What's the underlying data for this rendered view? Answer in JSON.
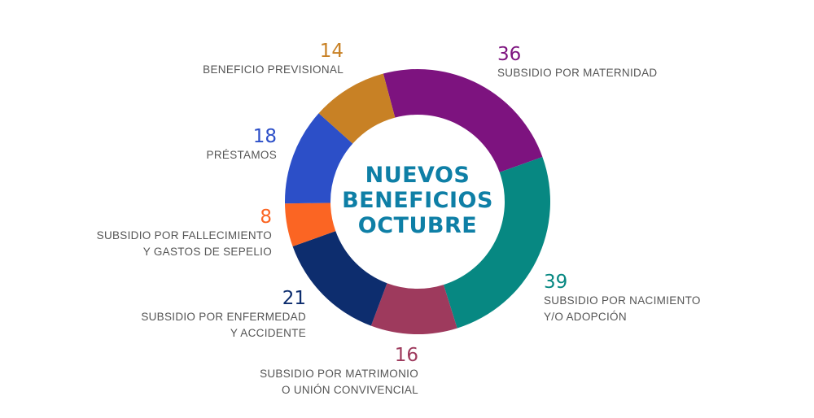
{
  "chart_data": {
    "type": "pie",
    "title": "NUEVOS BENEFICIOS OCTUBRE",
    "title_lines": [
      "NUEVOS",
      "BENEFICIOS",
      "OCTUBRE"
    ],
    "donut": true,
    "segments": [
      {
        "id": "maternidad",
        "value": 36,
        "label_lines": [
          "SUBSIDIO POR MATERNIDAD"
        ],
        "color": "#7d137f"
      },
      {
        "id": "nacimiento",
        "value": 39,
        "label_lines": [
          "SUBSIDIO POR NACIMIENTO",
          "Y/O ADOPCIÓN"
        ],
        "color": "#078882"
      },
      {
        "id": "matrimonio",
        "value": 16,
        "label_lines": [
          "SUBSIDIO POR MATRIMONIO",
          "O UNIÓN CONVIVENCIAL"
        ],
        "color": "#9e3a5d"
      },
      {
        "id": "enfermedad",
        "value": 21,
        "label_lines": [
          "SUBSIDIO POR ENFERMEDAD",
          "Y ACCIDENTE"
        ],
        "color": "#0d2d6e"
      },
      {
        "id": "fallecimiento",
        "value": 8,
        "label_lines": [
          "SUBSIDIO POR FALLECIMIENTO",
          "Y GASTOS DE SEPELIO"
        ],
        "color": "#fb6523"
      },
      {
        "id": "prestamos",
        "value": 18,
        "label_lines": [
          "PRÉSTAMOS"
        ],
        "color": "#2c4fc8"
      },
      {
        "id": "previsional",
        "value": 14,
        "label_lines": [
          "BENEFICIO PREVISIONAL"
        ],
        "color": "#c88125"
      }
    ],
    "title_color": "#0e7fa6",
    "label_text_color": "#555555"
  }
}
